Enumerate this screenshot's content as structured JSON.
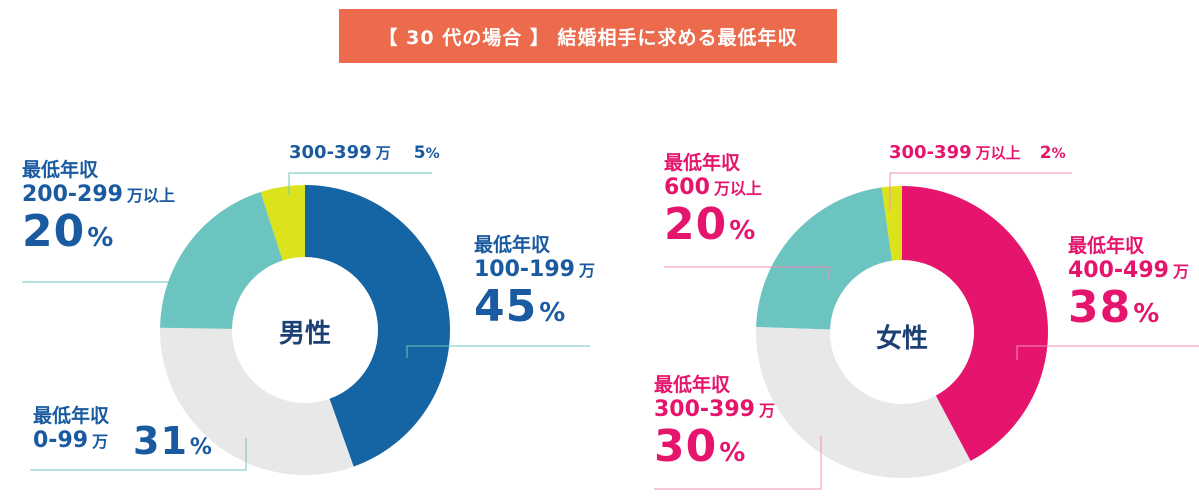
{
  "title": "【 30 代の場合 】 結婚相手に求める最低年収",
  "colors": {
    "banner": "#ec6b4d",
    "male_text": "#1a5aa0",
    "female_text": "#e5156e",
    "center_text": "#1c3f74",
    "male_leader": "#6cc4c0",
    "female_leader": "#f28cb5"
  },
  "male": {
    "center": "男性",
    "slices": [
      {
        "key": "100-199",
        "cat": "最低年収",
        "range": "100-199",
        "unit": "万",
        "pct": "45",
        "value": 45,
        "color": "#1564a3"
      },
      {
        "key": "0-99",
        "cat": "最低年収",
        "range": "0-99",
        "unit": "万",
        "pct": "31",
        "value": 31,
        "color": "#e8e8e8"
      },
      {
        "key": "200-299",
        "cat": "最低年収",
        "range": "200-299",
        "unit": "万以上",
        "pct": "20",
        "value": 20,
        "color": "#6cc4c0"
      },
      {
        "key": "300-399",
        "cat": "",
        "range": "300-399",
        "unit": "万",
        "pct": "5",
        "value": 5,
        "color": "#dce31c"
      }
    ]
  },
  "female": {
    "center": "女性",
    "slices": [
      {
        "key": "400-499",
        "cat": "最低年収",
        "range": "400-499",
        "unit": "万",
        "pct": "38",
        "value": 38,
        "color": "#e5156e"
      },
      {
        "key": "300-399",
        "cat": "最低年収",
        "range": "300-399",
        "unit": "万",
        "pct": "30",
        "value": 30,
        "color": "#e8e8e8"
      },
      {
        "key": "600",
        "cat": "最低年収",
        "range": "600",
        "unit": "万以上",
        "pct": "20",
        "value": 20,
        "color": "#6cc4c0"
      },
      {
        "key": "300-399b",
        "cat": "",
        "range": "300-399",
        "unit": "万以上",
        "pct": "2",
        "value": 2,
        "color": "#dce31c"
      }
    ]
  },
  "pct_symbol": "%",
  "chart_data": [
    {
      "type": "pie",
      "title": "【 30 代の場合 】 結婚相手に求める最低年収",
      "subtitle": "男性",
      "categories": [
        "最低年収 100-199 万",
        "最低年収 0-99 万",
        "最低年収 200-299 万以上",
        "300-399 万"
      ],
      "values": [
        45,
        31,
        20,
        5
      ]
    },
    {
      "type": "pie",
      "title": "【 30 代の場合 】 結婚相手に求める最低年収",
      "subtitle": "女性",
      "categories": [
        "最低年収 400-499 万",
        "最低年収 300-399 万",
        "最低年収 600 万以上",
        "300-399 万以上"
      ],
      "values": [
        38,
        30,
        20,
        2
      ]
    }
  ]
}
